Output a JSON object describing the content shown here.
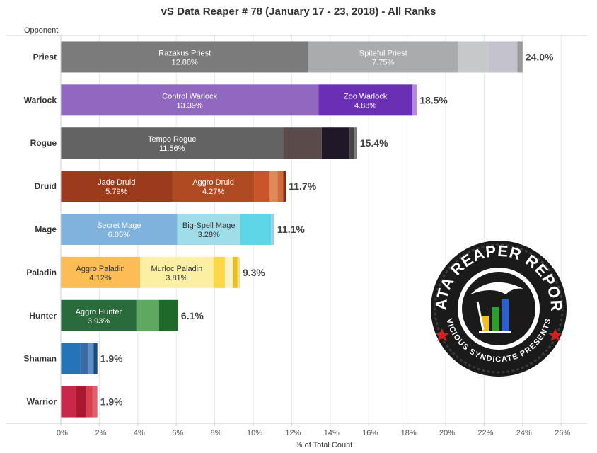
{
  "chart_data": {
    "type": "bar",
    "orientation": "horizontal",
    "stacked": true,
    "title": "vS Data Reaper # 78 (January 17 - 23, 2018) - All Ranks",
    "ylabel": "Opponent",
    "xlabel": "% of Total Count",
    "xlim": [
      0,
      26
    ],
    "xticks": [
      "0%",
      "2%",
      "4%",
      "6%",
      "8%",
      "10%",
      "12%",
      "14%",
      "16%",
      "18%",
      "20%",
      "22%",
      "24%",
      "26%"
    ],
    "grid": "vertical",
    "categories": [
      "Priest",
      "Warlock",
      "Rogue",
      "Druid",
      "Mage",
      "Paladin",
      "Hunter",
      "Shaman",
      "Warrior"
    ],
    "rows": [
      {
        "category": "Priest",
        "total": 24.0,
        "total_label": "24.0%",
        "segments": [
          {
            "name": "Razakus Priest",
            "value": 12.88,
            "label": "12.88%",
            "color": "#7b7b7b"
          },
          {
            "name": "Spiteful Priest",
            "value": 7.75,
            "label": "7.75%",
            "color": "#a9abad"
          },
          {
            "value": 1.6,
            "color": "#c7c8c9"
          },
          {
            "value": 1.5,
            "color": "#c3c2cd"
          },
          {
            "value": 0.27,
            "color": "#9a9a9a"
          }
        ]
      },
      {
        "category": "Warlock",
        "total": 18.5,
        "total_label": "18.5%",
        "segments": [
          {
            "name": "Control Warlock",
            "value": 13.39,
            "label": "13.39%",
            "color": "#9168c0"
          },
          {
            "name": "Zoo Warlock",
            "value": 4.88,
            "label": "4.88%",
            "color": "#6a2fb5"
          },
          {
            "value": 0.23,
            "color": "#b38ad8"
          }
        ]
      },
      {
        "category": "Rogue",
        "total": 15.4,
        "total_label": "15.4%",
        "segments": [
          {
            "name": "Tempo Rogue",
            "value": 11.56,
            "label": "11.56%",
            "color": "#636363"
          },
          {
            "value": 2.0,
            "color": "#5a4a4a"
          },
          {
            "value": 1.45,
            "color": "#201828"
          },
          {
            "value": 0.25,
            "color": "#444444"
          },
          {
            "value": 0.14,
            "color": "#7a7a7a"
          }
        ]
      },
      {
        "category": "Druid",
        "total": 11.7,
        "total_label": "11.7%",
        "segments": [
          {
            "name": "Jade Druid",
            "value": 5.79,
            "label": "5.79%",
            "color": "#9c3a1c"
          },
          {
            "name": "Aggro Druid",
            "value": 4.27,
            "label": "4.27%",
            "color": "#b04a22"
          },
          {
            "value": 0.8,
            "color": "#c9552a"
          },
          {
            "value": 0.4,
            "color": "#e08a5a"
          },
          {
            "value": 0.3,
            "color": "#d06a3a"
          },
          {
            "value": 0.14,
            "color": "#8a2a10"
          }
        ]
      },
      {
        "category": "Mage",
        "total": 11.1,
        "total_label": "11.1%",
        "segments": [
          {
            "name": "Secret Mage",
            "value": 6.05,
            "label": "6.05%",
            "color": "#7fb2dc"
          },
          {
            "name": "Big-Spell Mage",
            "value": 3.28,
            "label": "3.28%",
            "color": "#9fdde9",
            "dark_text": true
          },
          {
            "value": 1.6,
            "color": "#5fd6e8"
          },
          {
            "value": 0.17,
            "color": "#a8c8e0"
          }
        ]
      },
      {
        "category": "Paladin",
        "total": 9.3,
        "total_label": "9.3%",
        "segments": [
          {
            "name": "Aggro Paladin",
            "value": 4.12,
            "label": "4.12%",
            "color": "#fcbc56",
            "dark_text": true
          },
          {
            "name": "Murloc Paladin",
            "value": 3.81,
            "label": "3.81%",
            "color": "#fbefa4",
            "dark_text": true
          },
          {
            "value": 0.6,
            "color": "#fbd84a"
          },
          {
            "value": 0.4,
            "color": "#fdf2c4"
          },
          {
            "value": 0.25,
            "color": "#e8c020"
          },
          {
            "value": 0.12,
            "color": "#f0e090"
          }
        ]
      },
      {
        "category": "Hunter",
        "total": 6.1,
        "total_label": "6.1%",
        "segments": [
          {
            "name": "Aggro Hunter",
            "value": 3.93,
            "label": "3.93%",
            "color": "#2a6b3c"
          },
          {
            "value": 1.17,
            "color": "#5fa85f"
          },
          {
            "value": 1.0,
            "color": "#1e6a2a"
          }
        ]
      },
      {
        "category": "Shaman",
        "total": 1.9,
        "total_label": "1.9%",
        "segments": [
          {
            "value": 1.0,
            "color": "#2574b8"
          },
          {
            "value": 0.4,
            "color": "#3a6aa0"
          },
          {
            "value": 0.3,
            "color": "#5a90c8"
          },
          {
            "value": 0.2,
            "color": "#1e4a80"
          }
        ]
      },
      {
        "category": "Warrior",
        "total": 1.9,
        "total_label": "1.9%",
        "segments": [
          {
            "value": 0.8,
            "color": "#c8294a"
          },
          {
            "value": 0.5,
            "color": "#a81830"
          },
          {
            "value": 0.35,
            "color": "#d84050"
          },
          {
            "value": 0.25,
            "color": "#e06070"
          }
        ]
      }
    ]
  },
  "logo": {
    "top_text": "DATA REAPER REPORT",
    "bottom_text": "VICIOUS SYNDICATE PRESENTS"
  },
  "colors": {
    "grid": "#e6e6e6",
    "axis": "#cccccc",
    "logo_dark": "#1a1a1a"
  }
}
